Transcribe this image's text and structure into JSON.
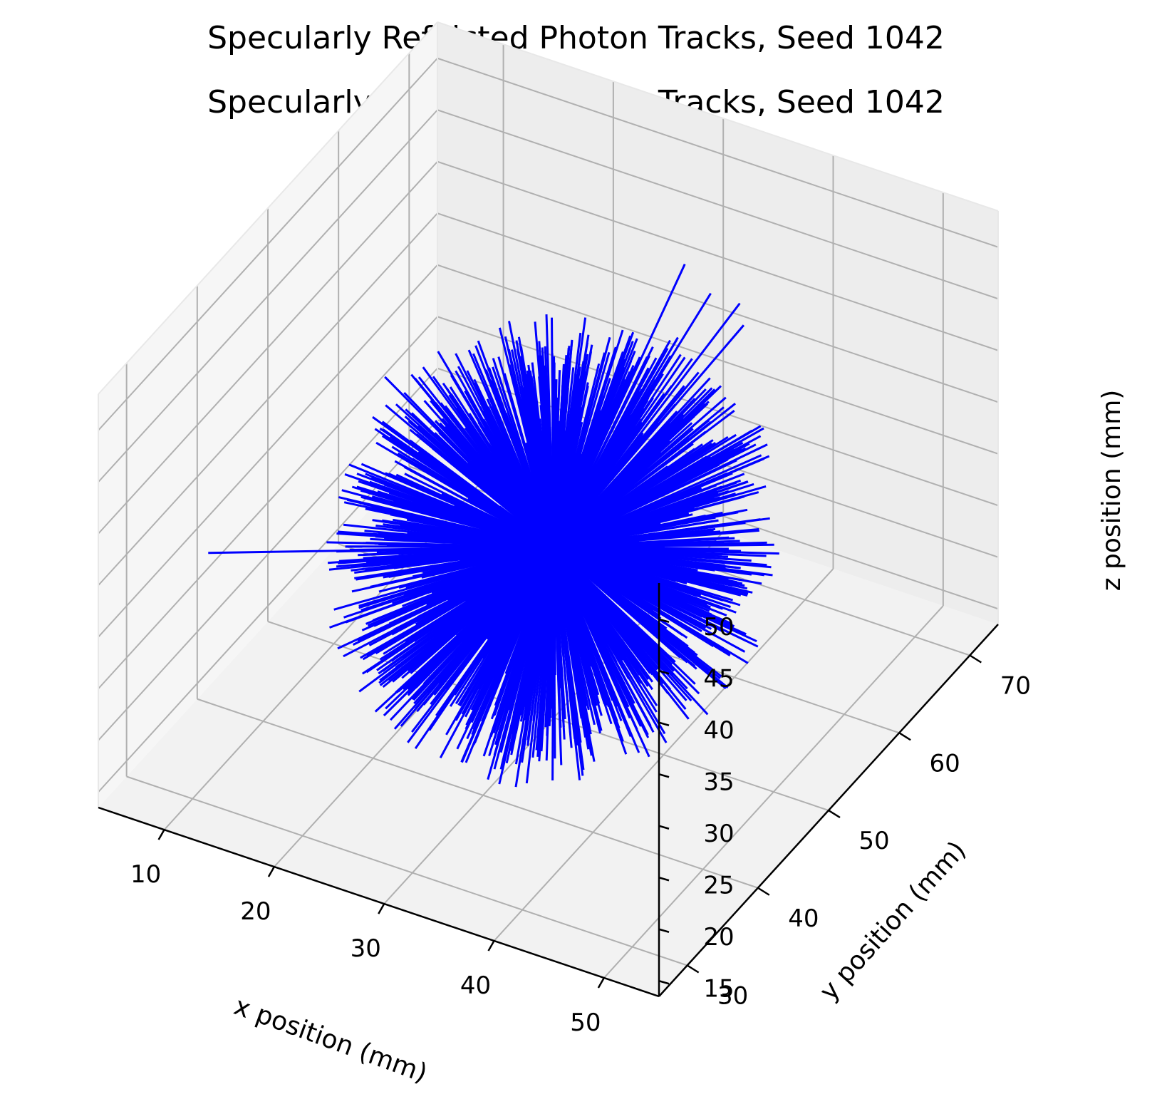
{
  "chart_data": {
    "type": "line",
    "projection": "3d",
    "title": "Specularly Refelcted Photon Tracks, Seed 1042",
    "title_repeat": "Specularly Refelcted Photon Tracks, Seed 1042",
    "xlabel": "x position (mm)",
    "ylabel": "y position (mm)",
    "zlabel": "z position (mm)",
    "x_ticks": [
      "10",
      "20",
      "30",
      "40",
      "50"
    ],
    "y_ticks": [
      "30",
      "40",
      "50",
      "60",
      "70"
    ],
    "z_ticks": [
      "15",
      "20",
      "25",
      "30",
      "35",
      "40",
      "45",
      "50"
    ],
    "xlim": [
      4,
      55
    ],
    "ylim": [
      26,
      74
    ],
    "zlim": [
      13.5,
      53.5
    ],
    "grid": true,
    "legend": "none",
    "series": [
      {
        "color": "#0000ff",
        "center": [
          30,
          50,
          30
        ],
        "radius_range": [
          13,
          18
        ],
        "track_count": 1400,
        "outlier_tracks": [
          {
            "from": [
              30,
              50,
              30
            ],
            "to": [
              31,
              67,
              45
            ]
          },
          {
            "from": [
              30,
              50,
              30
            ],
            "to": [
              34,
              66,
              44
            ]
          },
          {
            "from": [
              30,
              50,
              30
            ],
            "to": [
              36,
              67,
              43
            ]
          },
          {
            "from": [
              30,
              50,
              30
            ],
            "to": [
              37,
              66,
              42
            ]
          },
          {
            "from": [
              30,
              50,
              30
            ],
            "to": [
              5,
              40,
              28
            ]
          },
          {
            "from": [
              30,
              50,
              30
            ],
            "to": [
              14,
              51,
              40
            ]
          },
          {
            "from": [
              30,
              50,
              30
            ],
            "to": [
              43,
              57,
              21
            ]
          }
        ]
      }
    ]
  }
}
